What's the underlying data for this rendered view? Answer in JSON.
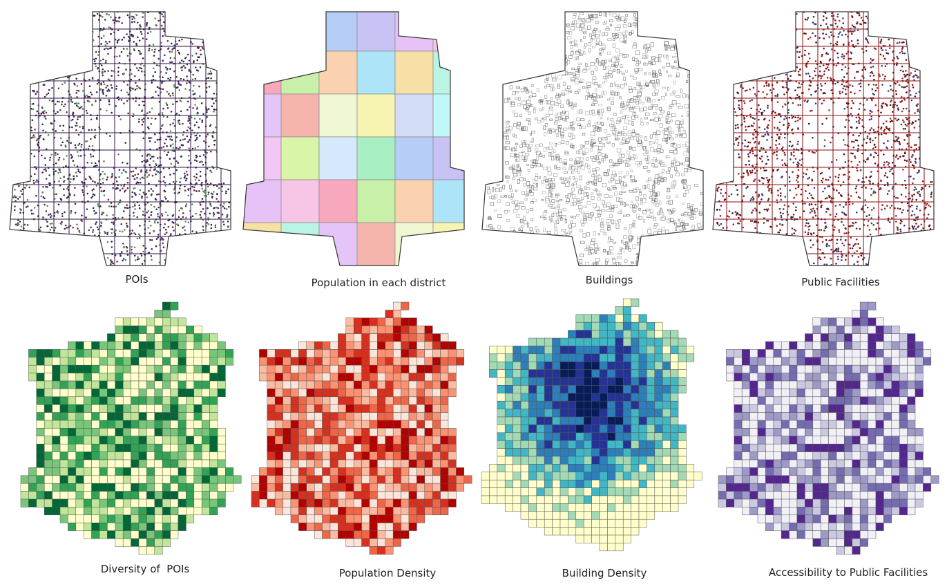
{
  "panels": [
    {
      "caption": "POIs"
    },
    {
      "caption": "Population in each district"
    },
    {
      "caption": "Buildings"
    },
    {
      "caption": "Public Facilities"
    },
    {
      "caption": "Diversity of  POIs"
    },
    {
      "caption": "Population Density"
    },
    {
      "caption": "Building Density"
    },
    {
      "caption": "Accessibility to Public Facilities"
    }
  ]
}
